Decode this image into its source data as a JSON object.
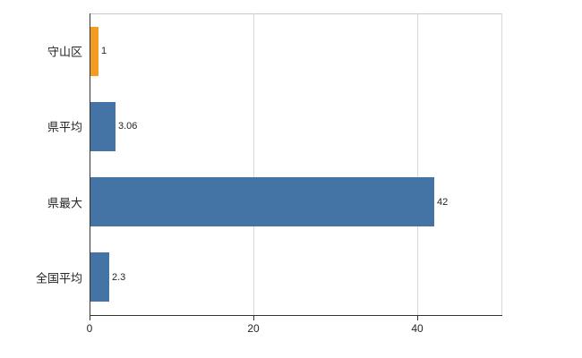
{
  "chart_data": {
    "type": "bar",
    "orientation": "horizontal",
    "title": "",
    "categories": [
      "守山区",
      "県平均",
      "県最大",
      "全国平均"
    ],
    "values": [
      1,
      3.06,
      42,
      2.3
    ],
    "value_labels": [
      "1",
      "3.06",
      "42",
      "2.3"
    ],
    "bar_colors": [
      "#f59a23",
      "#4473a5",
      "#4473a5",
      "#4473a5"
    ],
    "xlim": [
      0,
      50.3
    ],
    "x_ticks": [
      0,
      20,
      40
    ],
    "x_tick_labels": [
      "0",
      "20",
      "40"
    ],
    "grid": true,
    "legend": "none",
    "background_color": "#ffffff",
    "axis_color": "#333333",
    "gridline_color": "#d9d9d9"
  }
}
